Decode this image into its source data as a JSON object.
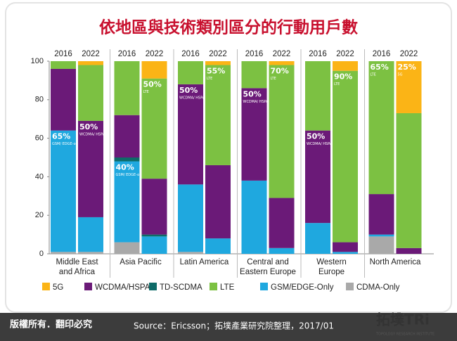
{
  "chart_data": {
    "type": "stacked_bar",
    "title": "依地區與技術類別區分的行動用戶數",
    "categories": [
      "Middle East and Africa",
      "Asia Pacific",
      "Latin America",
      "Central and Eastern Europe",
      "Western Europe",
      "North America"
    ],
    "groups": [
      "2016",
      "2022"
    ],
    "series": [
      {
        "name": "5G",
        "color": "#fbb416",
        "values": [
          [
            0,
            2
          ],
          [
            0,
            9
          ],
          [
            0,
            2
          ],
          [
            0,
            2
          ],
          [
            0,
            5
          ],
          [
            0,
            27
          ]
        ]
      },
      {
        "name": "WCDMA/HSPA",
        "color": "#6b1a78",
        "values": [
          [
            32,
            50
          ],
          [
            22,
            29
          ],
          [
            52,
            38
          ],
          [
            48,
            26
          ],
          [
            48,
            5
          ],
          [
            21,
            3
          ]
        ]
      },
      {
        "name": "TD-SCDMA",
        "color": "#0e6b68",
        "values": [
          [
            0,
            0
          ],
          [
            2,
            1
          ],
          [
            0,
            0
          ],
          [
            0,
            0
          ],
          [
            0,
            0
          ],
          [
            0,
            0
          ]
        ]
      },
      {
        "name": "LTE",
        "color": "#7cc142",
        "values": [
          [
            4,
            29
          ],
          [
            28,
            52
          ],
          [
            12,
            52
          ],
          [
            14,
            69
          ],
          [
            36,
            89
          ],
          [
            69,
            70
          ]
        ]
      },
      {
        "name": "GSM/EDGE-Only",
        "color": "#1fa8df",
        "values": [
          [
            63,
            18
          ],
          [
            42,
            9
          ],
          [
            35,
            8
          ],
          [
            38,
            3
          ],
          [
            16,
            1
          ],
          [
            1,
            0
          ]
        ]
      },
      {
        "name": "CDMA-Only",
        "color": "#a9a9a9",
        "values": [
          [
            1,
            1
          ],
          [
            6,
            0
          ],
          [
            1,
            0
          ],
          [
            0,
            0
          ],
          [
            0,
            0
          ],
          [
            9,
            0
          ]
        ]
      }
    ],
    "annotations": [
      {
        "text": "65%",
        "detail": "GSM/ EDGE-only"
      },
      {
        "text": "50%",
        "detail": "WCDMA/ HSPA"
      },
      {
        "text": "40%",
        "detail": "GSM/ EDGE-only"
      },
      {
        "text": "50%",
        "detail": "LTE"
      },
      {
        "text": "50%",
        "detail": "WCDMA/ HSPA"
      },
      {
        "text": "55%",
        "detail": "LTE"
      },
      {
        "text": "50%",
        "detail": "WCDMA/ HSPA"
      },
      {
        "text": "70%",
        "detail": "LTE"
      },
      {
        "text": "50%",
        "detail": "WCDMA/ HSPA"
      },
      {
        "text": "90%",
        "detail": "LTE"
      },
      {
        "text": "65%",
        "detail": "LTE"
      },
      {
        "text": "25%",
        "detail": "5G"
      }
    ],
    "ylim": [
      0,
      100
    ],
    "yticks": [
      0,
      20,
      40,
      60,
      80,
      100
    ],
    "grid": false,
    "source": "Source：Ericsson；拓墣產業研究院整理，2017/01"
  },
  "branding": {
    "copyright": "版權所有．翻印必究",
    "logo": "拓墣TRi",
    "logo_sub": "TOPOLOGY RESEARCH INSTITUTE"
  }
}
